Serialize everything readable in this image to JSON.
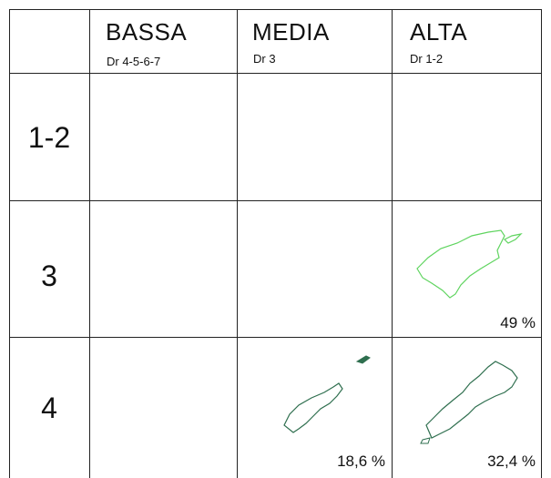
{
  "columns": [
    {
      "title": "BASSA",
      "subtitle": "Dr 4-5-6-7"
    },
    {
      "title": "MEDIA",
      "subtitle": "Dr 3"
    },
    {
      "title": "ALTA",
      "subtitle": "Dr 1-2"
    }
  ],
  "rows": [
    {
      "label": "1-2",
      "cells": [
        "",
        "",
        ""
      ]
    },
    {
      "label": "3",
      "cells": [
        "",
        "",
        "49 %"
      ]
    },
    {
      "label": "4",
      "cells": [
        "",
        "18,6 %",
        "32,4 %"
      ]
    }
  ],
  "colors": {
    "grid": "#222222",
    "outline_green": "#5fd45f",
    "outline_dark_green": "#2f6f4f"
  }
}
